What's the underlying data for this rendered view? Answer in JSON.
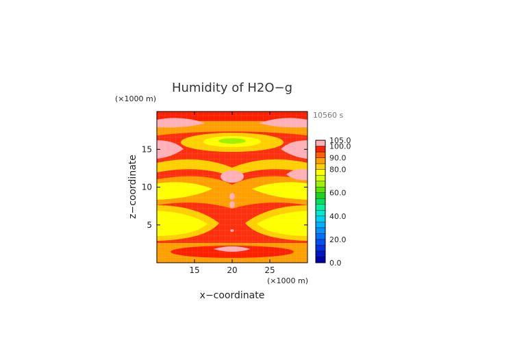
{
  "chart_data": {
    "type": "heatmap",
    "title": "Humidity of H2O−g",
    "time_label": "10560 s",
    "xlabel": "x−coordinate",
    "ylabel": "z−coordinate",
    "x_unit": "(×1000 m)",
    "y_unit": "(×1000 m)",
    "xlim": [
      10,
      30
    ],
    "ylim": [
      0,
      20
    ],
    "x_ticks": [
      15,
      20,
      25
    ],
    "y_ticks": [
      5,
      10,
      15
    ],
    "colorbar": {
      "min": 0,
      "max": 105,
      "tick_values": [
        0,
        20,
        40,
        60,
        80,
        90,
        100,
        105
      ],
      "tick_labels": [
        "0.0",
        "20.0",
        "40.0",
        "60.0",
        "80.0",
        "90.0",
        "100.0",
        "105.0"
      ],
      "levels": [
        {
          "from": 0,
          "to": 5,
          "color": "#0000a8"
        },
        {
          "from": 5,
          "to": 10,
          "color": "#0014c8"
        },
        {
          "from": 10,
          "to": 15,
          "color": "#0030e0"
        },
        {
          "from": 15,
          "to": 20,
          "color": "#0050f0"
        },
        {
          "from": 20,
          "to": 25,
          "color": "#0070ff"
        },
        {
          "from": 25,
          "to": 30,
          "color": "#0090ff"
        },
        {
          "from": 30,
          "to": 35,
          "color": "#00b0ff"
        },
        {
          "from": 35,
          "to": 40,
          "color": "#00d0f0"
        },
        {
          "from": 40,
          "to": 45,
          "color": "#00e8d0"
        },
        {
          "from": 45,
          "to": 50,
          "color": "#00f0a0"
        },
        {
          "from": 50,
          "to": 55,
          "color": "#00e060"
        },
        {
          "from": 55,
          "to": 60,
          "color": "#20d020"
        },
        {
          "from": 60,
          "to": 65,
          "color": "#60e000"
        },
        {
          "from": 65,
          "to": 70,
          "color": "#a0f000"
        },
        {
          "from": 70,
          "to": 75,
          "color": "#d8ff00"
        },
        {
          "from": 75,
          "to": 80,
          "color": "#ffff00"
        },
        {
          "from": 80,
          "to": 85,
          "color": "#ffd000"
        },
        {
          "from": 85,
          "to": 90,
          "color": "#ffa000"
        },
        {
          "from": 90,
          "to": 95,
          "color": "#ff6000"
        },
        {
          "from": 95,
          "to": 100,
          "color": "#ff2000"
        },
        {
          "from": 100,
          "to": 105,
          "color": "#ffb0b8"
        }
      ]
    },
    "field_zones": [
      {
        "z": 19.5,
        "value": 98,
        "note": "red top band"
      },
      {
        "z": 18.5,
        "value": 83,
        "note": "orange arcs"
      },
      {
        "z": 17.5,
        "value": 88,
        "note": "pink corners, orange middle"
      },
      {
        "z": 16.3,
        "value": 65,
        "note": "green core at x 20"
      },
      {
        "z": 15.0,
        "value": 96,
        "note": "red with pink patches"
      },
      {
        "z": 12.5,
        "value": 84,
        "note": "orange/yellow band"
      },
      {
        "z": 10.5,
        "value": 99,
        "note": "red, pink blob at x 20"
      },
      {
        "z": 8.0,
        "value": 96,
        "note": "red center, pink dots"
      },
      {
        "z": 6.5,
        "value": 77,
        "note": "yellow lobes"
      },
      {
        "z": 4.0,
        "value": 78,
        "note": "yellow lobes"
      },
      {
        "z": 2.0,
        "value": 93,
        "note": "red near-surface layer"
      },
      {
        "z": 0.5,
        "value": 85,
        "note": "orange bottom"
      }
    ]
  }
}
